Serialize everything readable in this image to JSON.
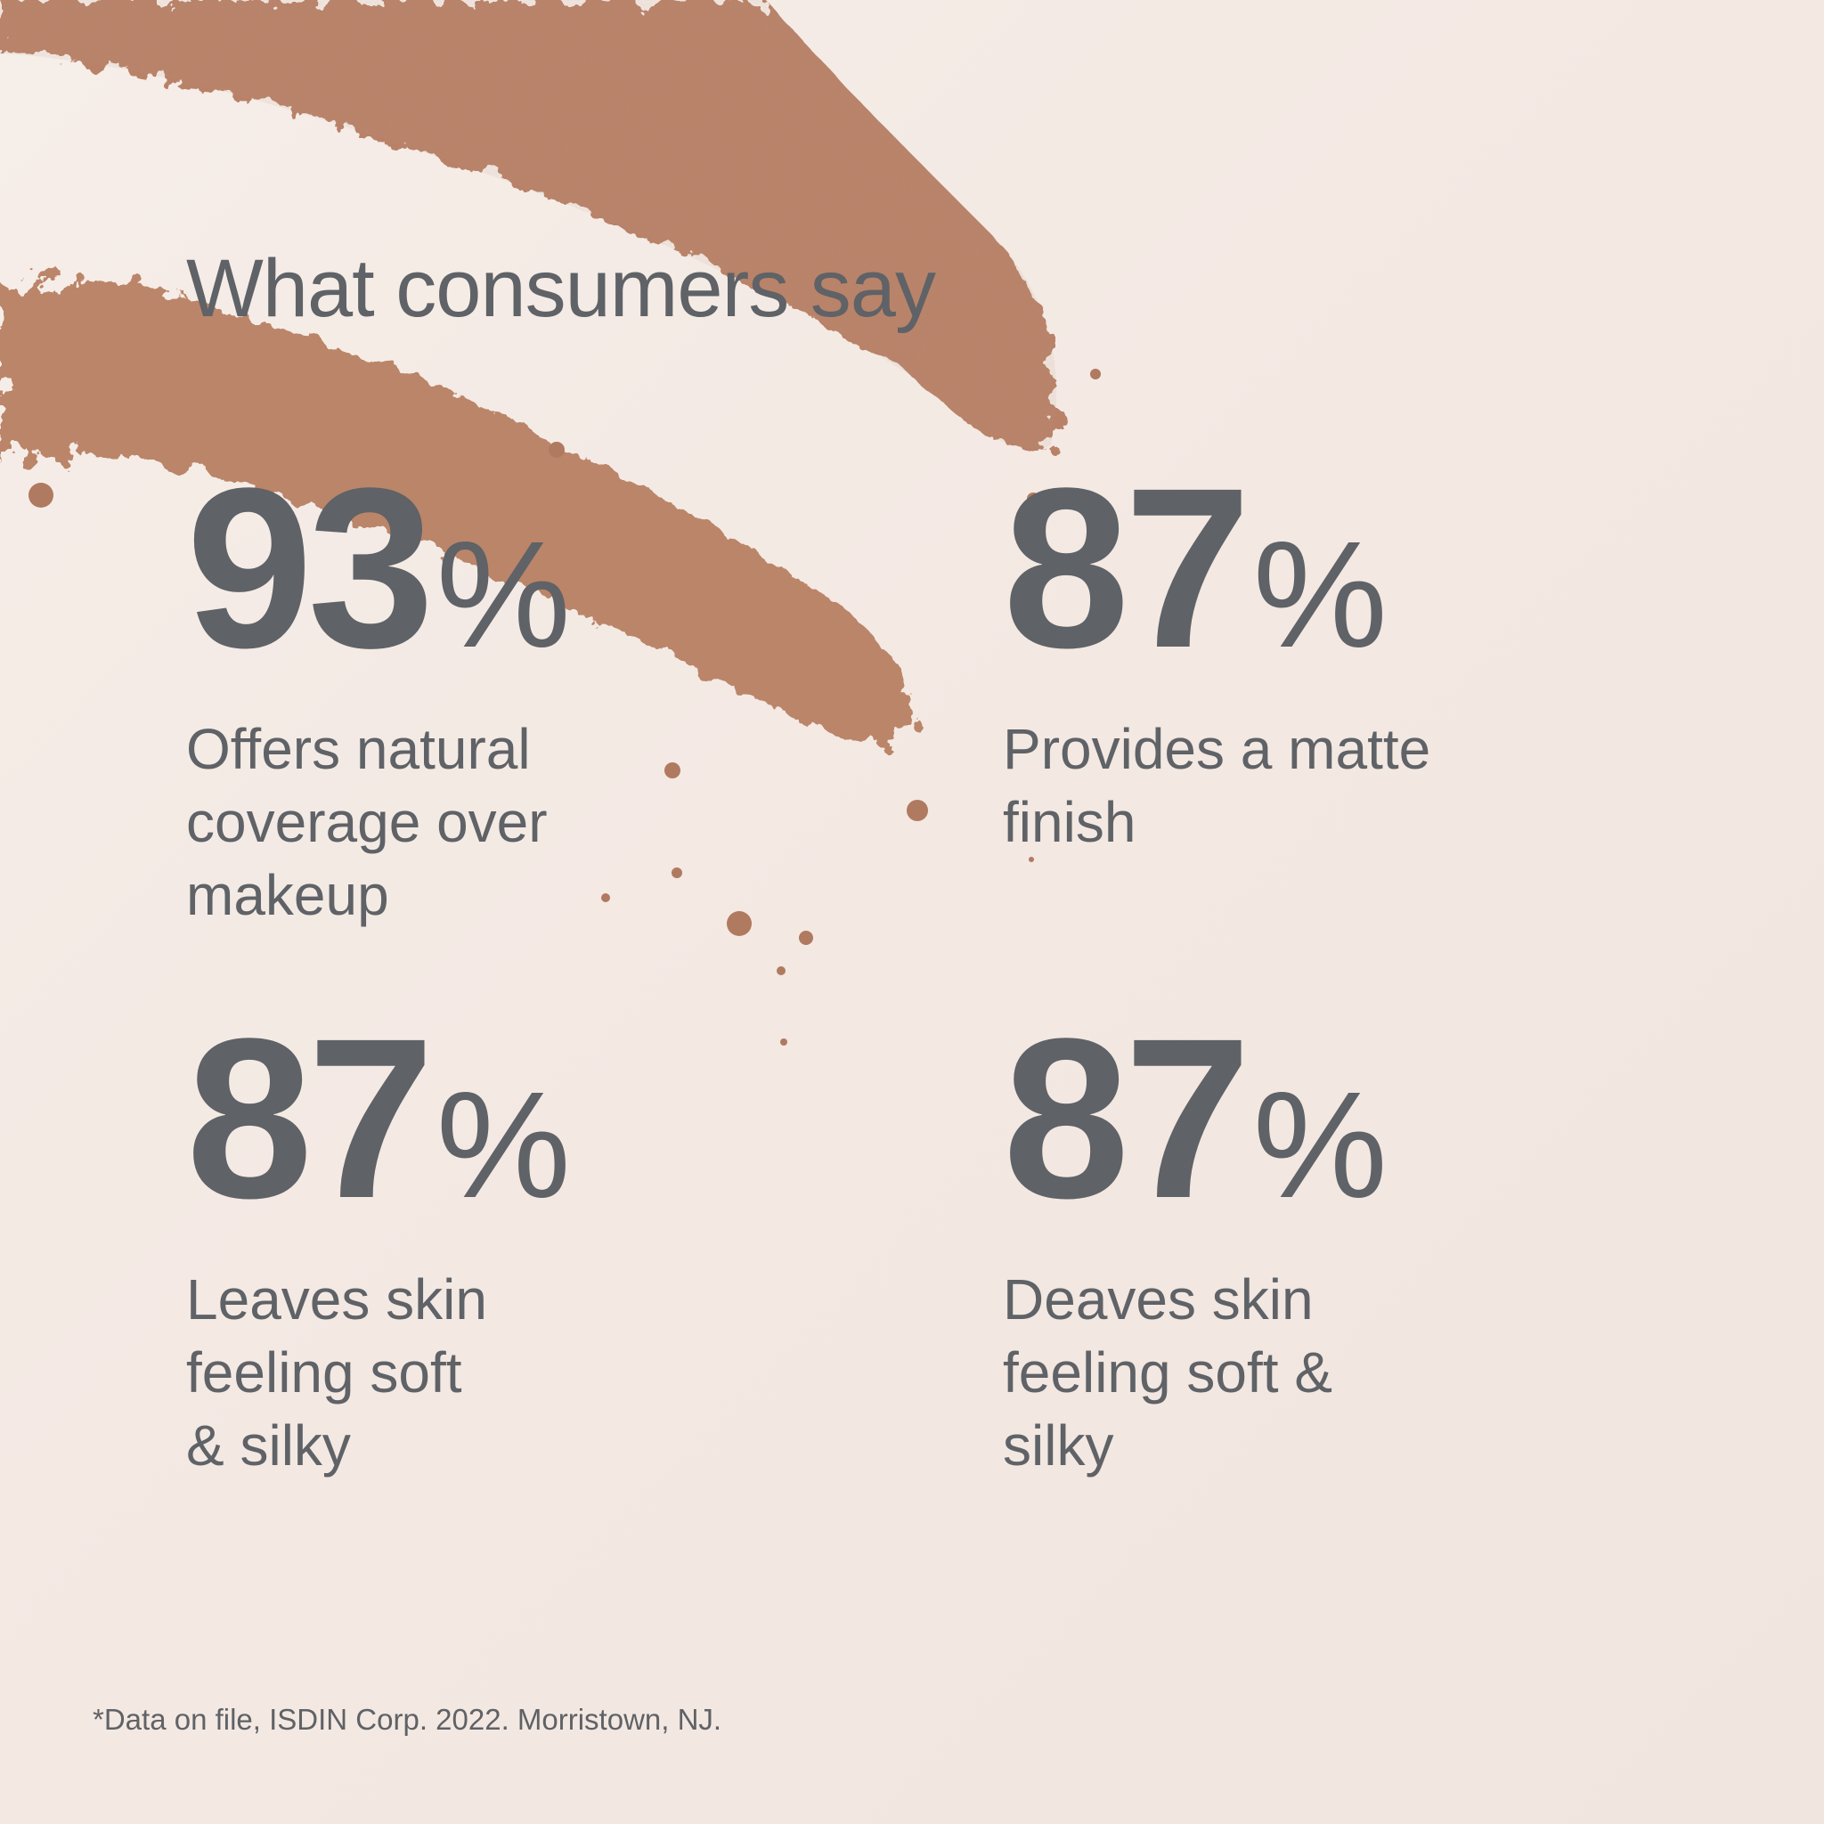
{
  "title": "What consumers say",
  "stats": [
    {
      "number": "93",
      "unit": "%",
      "description": "Offers natural\ncoverage over\nmakeup"
    },
    {
      "number": "87",
      "unit": "%",
      "description": "Provides a matte\nfinish"
    },
    {
      "number": "87",
      "unit": "%",
      "description": "Leaves skin\nfeeling soft\n& silky"
    },
    {
      "number": "87",
      "unit": "%",
      "description": "Deaves skin\nfeeling soft &\nsilky"
    }
  ],
  "footnote": "*Data on file, ISDIN Corp. 2022. Morristown, NJ.",
  "colors": {
    "background": "#f3e9e3",
    "text": "#5f6266",
    "powder": "#b98268"
  }
}
